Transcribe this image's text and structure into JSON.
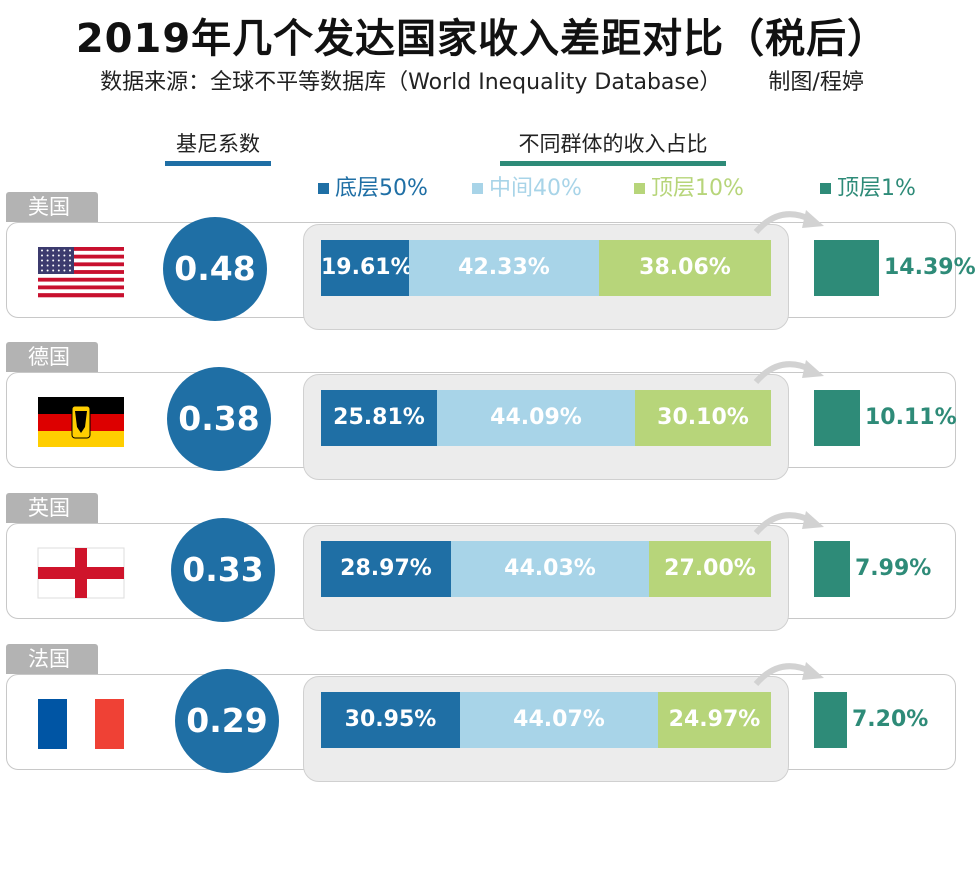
{
  "title": "2019年几个发达国家收入差距对比（税后）",
  "source": "数据来源：全球不平等数据库（World Inequality Database）",
  "credit": "制图/程婷",
  "gini_header": "基尼系数",
  "share_header": "不同群体的收入占比",
  "legend": [
    {
      "label": "底层50%",
      "color": "#1f6fa5",
      "text_color": "#1f6fa5"
    },
    {
      "label": "中间40%",
      "color": "#a8d4e8",
      "text_color": "#a8d4e8"
    },
    {
      "label": "顶层10%",
      "color": "#b7d57a",
      "text_color": "#b7d57a"
    },
    {
      "label": "顶层1%",
      "color": "#2e8b78",
      "text_color": "#2e8b78"
    }
  ],
  "chart_data": {
    "type": "bar",
    "orientation": "horizontal-stacked",
    "categories": [
      "美国",
      "德国",
      "英国",
      "法国"
    ],
    "gini": [
      0.48,
      0.38,
      0.33,
      0.29
    ],
    "gini_labels": [
      "0.48",
      "0.38",
      "0.33",
      "0.29"
    ],
    "series": [
      {
        "name": "底层50%",
        "values": [
          19.61,
          25.81,
          28.97,
          30.95
        ],
        "labels": [
          "19.61%",
          "25.81%",
          "28.97%",
          "30.95%"
        ]
      },
      {
        "name": "中间40%",
        "values": [
          42.33,
          44.09,
          44.03,
          44.07
        ],
        "labels": [
          "42.33%",
          "44.09%",
          "44.03%",
          "44.07%"
        ]
      },
      {
        "name": "顶层10%",
        "values": [
          38.06,
          30.1,
          27.0,
          24.97
        ],
        "labels": [
          "38.06%",
          "30.10%",
          "27.00%",
          "24.97%"
        ]
      },
      {
        "name": "顶层1%",
        "values": [
          14.39,
          10.11,
          7.99,
          7.2
        ],
        "labels": [
          "14.39%",
          "10.11%",
          "7.99%",
          "7.20%"
        ]
      }
    ],
    "flags": [
      "us-flag",
      "germany-flag",
      "england-flag",
      "france-flag"
    ],
    "colors": {
      "bottom50": "#1f6fa5",
      "middle40": "#a8d4e8",
      "top10": "#b7d57a",
      "top1": "#2e8b78",
      "gini": "#1f6fa5"
    }
  }
}
